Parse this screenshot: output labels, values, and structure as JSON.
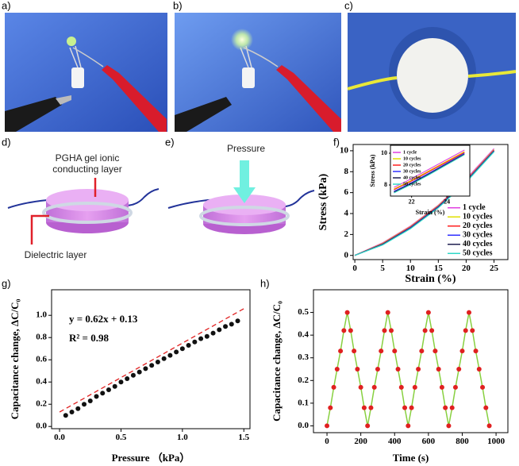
{
  "panel_labels": [
    "a)",
    "b)",
    "c)",
    "d)",
    "e)",
    "f)",
    "g)",
    "h)"
  ],
  "diagram_d": {
    "label_top_1": "PGHA gel ionic",
    "label_top_2": "conducting layer",
    "label_bottom": "Dielectric layer"
  },
  "diagram_e": {
    "label": "Pressure"
  },
  "chart_data": [
    {
      "type": "line",
      "xlabel": "Strain (%)",
      "ylabel": "Stress (kPa)",
      "x": [
        0,
        5,
        10,
        15,
        20,
        25
      ],
      "series": [
        {
          "name": "1 cycle",
          "color": "#e040e0",
          "values": [
            0,
            1.2,
            2.8,
            4.8,
            7.3,
            10.2
          ]
        },
        {
          "name": "10 cycles",
          "color": "#e0e000",
          "values": [
            0,
            1.15,
            2.75,
            4.75,
            7.2,
            10.1
          ]
        },
        {
          "name": "20 cycles",
          "color": "#ff2020",
          "values": [
            0,
            1.1,
            2.7,
            4.7,
            7.15,
            10.05
          ]
        },
        {
          "name": "30 cycles",
          "color": "#3030ff",
          "values": [
            0,
            1.08,
            2.65,
            4.65,
            7.1,
            10.0
          ]
        },
        {
          "name": "40 cycles",
          "color": "#202050",
          "values": [
            0,
            1.05,
            2.6,
            4.6,
            7.05,
            9.95
          ]
        },
        {
          "name": "50 cycles",
          "color": "#30d8c8",
          "values": [
            0,
            1.0,
            2.55,
            4.55,
            7.0,
            9.9
          ]
        }
      ],
      "xlim": [
        -0.3,
        27.5
      ],
      "ylim": [
        -0.4,
        10.6
      ],
      "xticks": [
        0,
        5,
        10,
        15,
        20,
        25
      ],
      "yticks": [
        0,
        2,
        4,
        6,
        8,
        10
      ],
      "legend": "lower right"
    },
    {
      "type": "line",
      "xlabel": "Strain (%)",
      "ylabel": "Stress (kPa)",
      "x": [
        21,
        22,
        23,
        24,
        25
      ],
      "series": [
        {
          "name": "1 cycle",
          "color": "#e040e0",
          "values": [
            7.85,
            8.4,
            9.0,
            9.6,
            10.2
          ]
        },
        {
          "name": "10 cycles",
          "color": "#e0e000",
          "values": [
            7.75,
            8.3,
            8.9,
            9.5,
            10.1
          ]
        },
        {
          "name": "20 cycles",
          "color": "#ff2020",
          "values": [
            7.7,
            8.25,
            8.85,
            9.45,
            10.05
          ]
        },
        {
          "name": "30 cycles",
          "color": "#3030ff",
          "values": [
            7.6,
            8.15,
            8.75,
            9.38,
            10.0
          ]
        },
        {
          "name": "40 cycles",
          "color": "#202050",
          "values": [
            7.55,
            8.1,
            8.7,
            9.33,
            9.95
          ]
        },
        {
          "name": "50 cycles",
          "color": "#30d8c8",
          "values": [
            7.5,
            8.05,
            8.65,
            9.28,
            9.9
          ]
        }
      ],
      "xlim": [
        20.8,
        25.3
      ],
      "ylim": [
        7.3,
        10.5
      ],
      "xticks": [
        22,
        24
      ],
      "yticks": [
        8,
        10
      ],
      "legend": "upper left"
    },
    {
      "type": "scatter",
      "xlabel": "Pressure （kPa）",
      "ylabel": "Capacitance change, ΔC/C₀",
      "annotations": [
        "y = 0.62x + 0.13",
        "R² = 0.98"
      ],
      "x": [
        0.05,
        0.1,
        0.15,
        0.2,
        0.25,
        0.3,
        0.35,
        0.4,
        0.45,
        0.5,
        0.55,
        0.6,
        0.65,
        0.7,
        0.75,
        0.8,
        0.85,
        0.9,
        0.95,
        1.0,
        1.05,
        1.1,
        1.15,
        1.2,
        1.25,
        1.3,
        1.35,
        1.4,
        1.45
      ],
      "values": [
        0.1,
        0.13,
        0.16,
        0.2,
        0.23,
        0.27,
        0.3,
        0.33,
        0.36,
        0.4,
        0.43,
        0.46,
        0.49,
        0.52,
        0.55,
        0.58,
        0.61,
        0.64,
        0.67,
        0.7,
        0.73,
        0.76,
        0.79,
        0.81,
        0.84,
        0.87,
        0.9,
        0.92,
        0.95
      ],
      "color": "#111111",
      "fit_line": {
        "x": [
          0,
          1.5
        ],
        "values": [
          0.13,
          1.06
        ],
        "color": "#e02020"
      },
      "xlim": [
        -0.065,
        1.55
      ],
      "ylim": [
        -0.02,
        1.23
      ],
      "xticks": [
        {
          "value": 0,
          "label": "0.0"
        },
        0.5,
        {
          "value": 1,
          "label": "1.0"
        },
        1.5
      ],
      "yticks": [
        {
          "value": 0,
          "label": "0.0"
        },
        0.2,
        0.4,
        0.6,
        0.8,
        {
          "value": 1,
          "label": "1.0"
        }
      ]
    },
    {
      "type": "scatter",
      "xlabel": "Time (s)",
      "ylabel": "Capacitance change, ΔC/C₀",
      "x": [
        0,
        20,
        40,
        60,
        80,
        100,
        120,
        140,
        160,
        180,
        200,
        220,
        240,
        260,
        280,
        300,
        320,
        340,
        360,
        380,
        400,
        420,
        440,
        460,
        480,
        500,
        520,
        540,
        560,
        580,
        600,
        620,
        640,
        660,
        680,
        700,
        720,
        740,
        760,
        780,
        800,
        820,
        840,
        860,
        880,
        900,
        920,
        940,
        960
      ],
      "values": [
        0,
        0.08,
        0.17,
        0.25,
        0.33,
        0.42,
        0.5,
        0.42,
        0.33,
        0.25,
        0.17,
        0.08,
        0,
        0.08,
        0.17,
        0.25,
        0.33,
        0.42,
        0.5,
        0.42,
        0.33,
        0.25,
        0.17,
        0.08,
        0,
        0.08,
        0.17,
        0.25,
        0.33,
        0.42,
        0.5,
        0.42,
        0.33,
        0.25,
        0.17,
        0.08,
        0,
        0.08,
        0.17,
        0.25,
        0.33,
        0.42,
        0.5,
        0.42,
        0.33,
        0.25,
        0.17,
        0.08,
        0
      ],
      "color": "#e02020",
      "line_color": "#88d040",
      "connect": true,
      "xlim": [
        -80,
        1070
      ],
      "ylim": [
        -0.03,
        0.6
      ],
      "xticks": [
        0,
        200,
        400,
        600,
        800,
        1000
      ],
      "yticks": [
        {
          "value": 0,
          "label": "0.0"
        },
        0.1,
        0.2,
        0.3,
        0.4,
        0.5
      ]
    }
  ]
}
